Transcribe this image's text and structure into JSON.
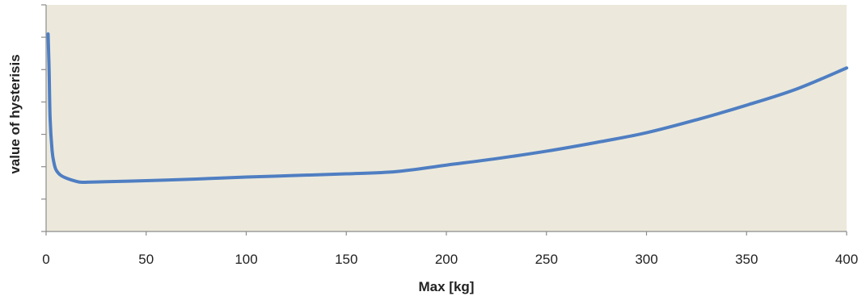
{
  "chart_data": {
    "type": "line",
    "title": "",
    "xlabel": "Max [kg]",
    "ylabel": "value of hysterisis",
    "xlim": [
      0,
      400
    ],
    "ylim": [
      0,
      7
    ],
    "xticks": [
      0,
      50,
      100,
      150,
      200,
      250,
      300,
      350,
      400
    ],
    "xtick_labels": [
      "0",
      "50",
      "100",
      "150",
      "200",
      "250",
      "300",
      "350",
      "400"
    ],
    "yticks": [
      0,
      1,
      2,
      3,
      4,
      5,
      6,
      7
    ],
    "ytick_labels_visible": false,
    "grid": false,
    "legend": false,
    "colors": {
      "plot_background": "#ece9dc",
      "line": "#4f7ec2",
      "axis": "#8c8c8c"
    },
    "series": [
      {
        "x": [
          1,
          1.5,
          2,
          3,
          4,
          5,
          7,
          10,
          15,
          18,
          25,
          50,
          75,
          100,
          125,
          150,
          175,
          200,
          225,
          250,
          275,
          300,
          325,
          350,
          375,
          400
        ],
        "y": [
          6.1,
          5.0,
          3.5,
          2.5,
          2.1,
          1.9,
          1.75,
          1.65,
          1.55,
          1.52,
          1.53,
          1.57,
          1.62,
          1.68,
          1.73,
          1.78,
          1.85,
          2.05,
          2.25,
          2.48,
          2.75,
          3.05,
          3.45,
          3.9,
          4.4,
          5.05
        ]
      }
    ]
  }
}
